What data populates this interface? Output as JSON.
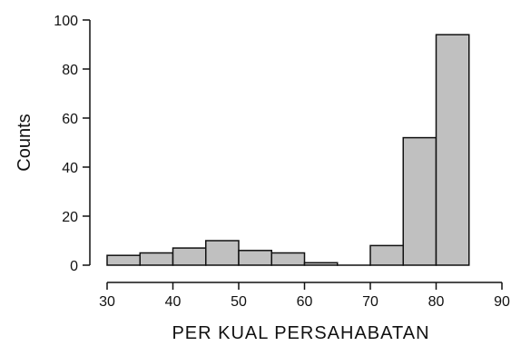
{
  "chart_data": {
    "type": "bar",
    "subtype": "histogram",
    "xlabel": "PER KUAL PERSAHABATAN",
    "ylabel": "Counts",
    "xlim": [
      30,
      90
    ],
    "ylim": [
      0,
      100
    ],
    "x_ticks": [
      "30",
      "40",
      "50",
      "60",
      "70",
      "80",
      "90"
    ],
    "y_ticks": [
      "0",
      "20",
      "40",
      "60",
      "80",
      "100"
    ],
    "bin_width": 5,
    "bins": [
      {
        "start": 30,
        "end": 35,
        "count": 4
      },
      {
        "start": 35,
        "end": 40,
        "count": 5
      },
      {
        "start": 40,
        "end": 45,
        "count": 7
      },
      {
        "start": 45,
        "end": 50,
        "count": 10
      },
      {
        "start": 50,
        "end": 55,
        "count": 6
      },
      {
        "start": 55,
        "end": 60,
        "count": 5
      },
      {
        "start": 60,
        "end": 65,
        "count": 1
      },
      {
        "start": 65,
        "end": 70,
        "count": 0
      },
      {
        "start": 70,
        "end": 75,
        "count": 8
      },
      {
        "start": 75,
        "end": 80,
        "count": 52
      },
      {
        "start": 80,
        "end": 85,
        "count": 94
      }
    ],
    "bar_color": "#c0c0c0",
    "edge_color": "#111111",
    "grid": false
  }
}
